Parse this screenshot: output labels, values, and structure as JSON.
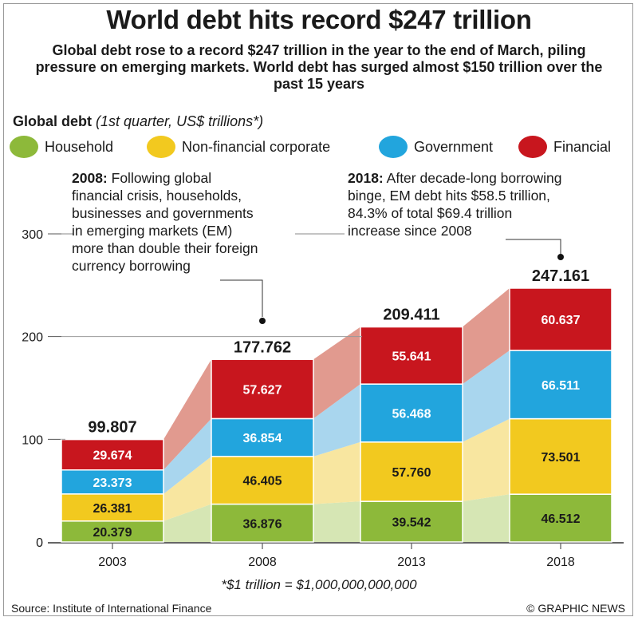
{
  "title": "World debt hits record $247 trillion",
  "subtitle": "Global debt rose to a record $247 trillion in the year to the end of March, piling pressure on emerging markets. World debt has surged almost $150 trillion over the past 15 years",
  "chart_label_bold": "Global debt",
  "chart_label_italic": "(1st quarter, US$ trillions*)",
  "legend": [
    {
      "label": "Household",
      "color": "#8db93a"
    },
    {
      "label": "Non-financial corporate",
      "color": "#f2c91f"
    },
    {
      "label": "Government",
      "color": "#22a5dd"
    },
    {
      "label": "Financial",
      "color": "#c8161e"
    }
  ],
  "notes": {
    "left_bold": "2008:",
    "left_lines": [
      " Following global",
      "financial crisis, households,",
      "businesses and governments",
      "in emerging markets (EM)",
      "more than double their foreign",
      "currency borrowing"
    ],
    "right_bold": "2018:",
    "right_lines": [
      " After decade-long borrowing",
      "binge, EM debt hits $58.5 trillion,",
      "84.3% of total $69.4 trillion",
      "increase since 2008"
    ]
  },
  "footnote": "*$1 trillion = $1,000,000,000,000",
  "source": "Source: Institute of International Finance",
  "credit": "© GRAPHIC NEWS",
  "chart_data": {
    "type": "bar",
    "stacked": true,
    "categories": [
      "2003",
      "2008",
      "2013",
      "2018"
    ],
    "series": [
      {
        "name": "Household",
        "color": "#8db93a",
        "values": [
          20.379,
          36.876,
          39.542,
          46.512
        ],
        "labels": [
          "20.379",
          "36.876",
          "39.542",
          "46.512"
        ]
      },
      {
        "name": "Non-financial corporate",
        "color": "#f2c91f",
        "values": [
          26.381,
          46.405,
          57.76,
          73.501
        ],
        "labels": [
          "26.381",
          "46.405",
          "57.760",
          "73.501"
        ]
      },
      {
        "name": "Government",
        "color": "#22a5dd",
        "values": [
          23.373,
          36.854,
          56.468,
          66.511
        ],
        "labels": [
          "23.373",
          "36.854",
          "56.468",
          "66.511"
        ]
      },
      {
        "name": "Financial",
        "color": "#c8161e",
        "values": [
          29.674,
          57.627,
          55.641,
          60.637
        ],
        "labels": [
          "29.674",
          "57.627",
          "55.641",
          "60.637"
        ]
      }
    ],
    "totals": [
      "99.807",
      "177.762",
      "209.411",
      "247.161"
    ],
    "yticks": [
      0,
      100,
      200,
      300
    ],
    "ylim": [
      0,
      300
    ],
    "grid": false
  }
}
